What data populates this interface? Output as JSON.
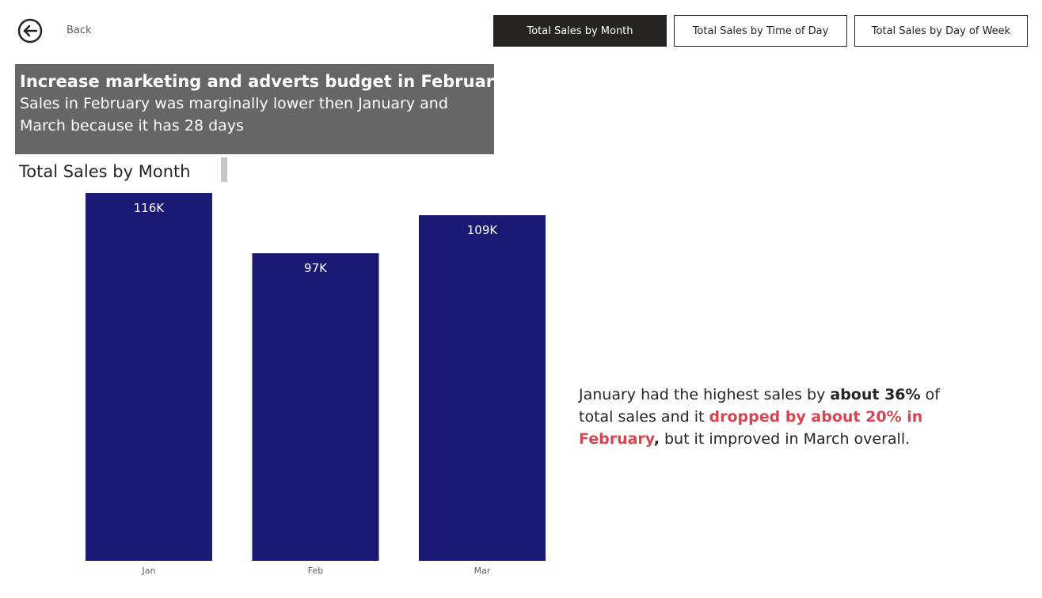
{
  "nav": {
    "back_label": "Back",
    "buttons": [
      {
        "label": "Total Sales by Month",
        "active": true
      },
      {
        "label": "Total Sales by Time of Day",
        "active": false
      },
      {
        "label": "Total Sales by Day of Week",
        "active": false
      }
    ]
  },
  "callout": {
    "title": "Increase marketing and adverts budget in February",
    "body": "Sales in February was marginally lower then January and March because it has 28 days"
  },
  "commentary": {
    "part1": "January had the highest sales by ",
    "highlight1": "about 36%",
    "part2": " of total sales and it ",
    "highlight2": "dropped by about 20% in February",
    "part3": ",",
    "part4": " but it improved in March overall."
  },
  "colors": {
    "bar": "#1a1a75",
    "alert": "#d64550",
    "callout_bg": "#666666",
    "active_button": "#252423"
  },
  "chart_data": {
    "type": "bar",
    "title": "Total Sales by Month",
    "categories": [
      "Jan",
      "Feb",
      "Mar"
    ],
    "values": [
      116000,
      97000,
      109000
    ],
    "data_labels": [
      "116K",
      "97K",
      "109K"
    ],
    "xlabel": "",
    "ylabel": "",
    "ylim": [
      0,
      116000
    ],
    "grid": false
  }
}
